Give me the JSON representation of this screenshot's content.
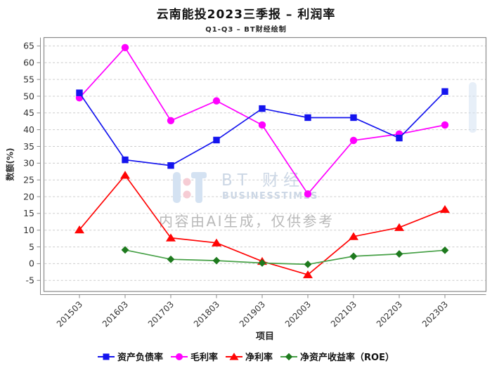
{
  "title": "云南能投2023三季报 – 利润率",
  "subtitle": "Q1-Q3 – BT财经绘制",
  "watermark": {
    "brand_cn": "BT 财经",
    "brand_en": "BUSINESSTIMES",
    "disclaimer": "内容由AI生成，仅供参考"
  },
  "chart_data": {
    "type": "line",
    "title": "云南能投2023三季报 – 利润率",
    "subtitle": "Q1-Q3 – BT财经绘制",
    "xlabel": "项目",
    "ylabel": "数额(%)",
    "categories": [
      "201503",
      "201603",
      "201703",
      "201803",
      "201903",
      "202003",
      "202103",
      "202203",
      "202303"
    ],
    "series": [
      {
        "name": "资产负债率",
        "marker": "square",
        "line_color": "#1414ee",
        "marker_color": "#1414ee",
        "values": [
          51.0,
          31.0,
          29.3,
          36.9,
          46.3,
          43.6,
          43.6,
          37.5,
          51.4
        ]
      },
      {
        "name": "毛利率",
        "marker": "circle",
        "line_color": "#ff00ff",
        "marker_color": "#ff00ff",
        "values": [
          49.5,
          64.5,
          42.7,
          48.6,
          41.4,
          20.8,
          36.8,
          38.7,
          41.4
        ]
      },
      {
        "name": "净利率",
        "marker": "triangle",
        "line_color": "#ff0505",
        "marker_color": "#ff0505",
        "values": [
          10.1,
          26.4,
          7.7,
          6.2,
          0.7,
          -3.3,
          8.1,
          10.8,
          16.2
        ]
      },
      {
        "name": "净资产收益率（ROE）",
        "marker": "diamond",
        "line_color": "#46a046",
        "marker_color": "#1e7a1e",
        "values": [
          null,
          4.1,
          1.3,
          0.9,
          0.2,
          -0.2,
          2.2,
          2.9,
          4.0
        ]
      }
    ],
    "y_ticks": [
      -5,
      0,
      5,
      10,
      15,
      20,
      25,
      30,
      35,
      40,
      45,
      50,
      55,
      60,
      65
    ],
    "ylim": [
      -8.3,
      67.5
    ],
    "grid": "dashed-horizontal",
    "legend_position": "bottom",
    "colors": {
      "gridline": "#cccccc",
      "axis": "#8a8a8a",
      "tick_text": "#333333",
      "watermark_blue": "#d4e2f2",
      "watermark_pink": "#f6ccd4",
      "watermark_text": "#ccd7e5",
      "disclaimer_text": "#b9b9b9"
    }
  }
}
